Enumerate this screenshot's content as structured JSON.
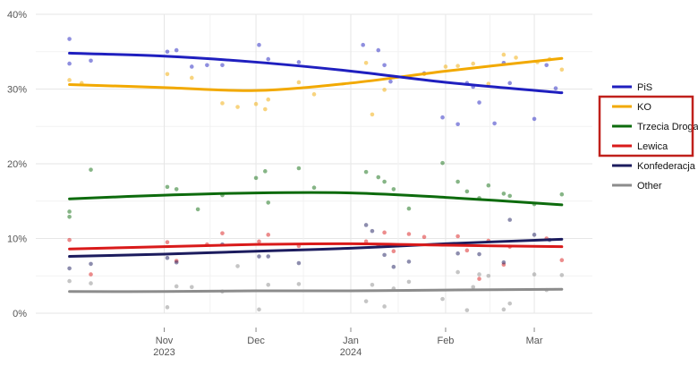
{
  "chart_data": {
    "type": "scatter",
    "ylim": [
      0,
      40
    ],
    "yticks": [
      0,
      10,
      20,
      30,
      40
    ],
    "ytick_labels": [
      "0%",
      "10%",
      "20%",
      "30%",
      "40%"
    ],
    "xlim": [
      "2023-09-20",
      "2024-03-20"
    ],
    "xticks": [
      {
        "date": "2023-11-01",
        "label": "Nov",
        "sublabel": "2023"
      },
      {
        "date": "2023-12-01",
        "label": "Dec",
        "sublabel": ""
      },
      {
        "date": "2024-01-01",
        "label": "Jan",
        "sublabel": "2024"
      },
      {
        "date": "2024-02-01",
        "label": "Feb",
        "sublabel": ""
      },
      {
        "date": "2024-03-01",
        "label": "Mar",
        "sublabel": ""
      }
    ],
    "grid": true,
    "legend_position": "right",
    "legend_highlight": [
      "KO",
      "Trzecia Droga",
      "Lewica"
    ],
    "highlight_color": "#c0201b",
    "series": [
      {
        "name": "PiS",
        "color": "#1f1fbf",
        "trend": [
          [
            "2023-10-01",
            34.8
          ],
          [
            "2023-11-01",
            34.4
          ],
          [
            "2023-12-01",
            33.6
          ],
          [
            "2024-01-01",
            32.4
          ],
          [
            "2024-02-01",
            30.9
          ],
          [
            "2024-03-10",
            29.5
          ]
        ],
        "points": [
          [
            "2023-10-01",
            36.7
          ],
          [
            "2023-10-01",
            33.4
          ],
          [
            "2023-10-08",
            33.8
          ],
          [
            "2023-11-02",
            35.0
          ],
          [
            "2023-11-05",
            35.2
          ],
          [
            "2023-11-10",
            33.0
          ],
          [
            "2023-11-15",
            33.2
          ],
          [
            "2023-11-20",
            33.2
          ],
          [
            "2023-12-02",
            35.9
          ],
          [
            "2023-12-05",
            34.0
          ],
          [
            "2023-12-15",
            33.6
          ],
          [
            "2024-01-05",
            35.9
          ],
          [
            "2024-01-10",
            35.2
          ],
          [
            "2024-01-12",
            33.2
          ],
          [
            "2024-01-14",
            31.0
          ],
          [
            "2024-01-25",
            32.1
          ],
          [
            "2024-01-31",
            26.2
          ],
          [
            "2024-02-05",
            25.3
          ],
          [
            "2024-02-08",
            30.8
          ],
          [
            "2024-02-10",
            30.3
          ],
          [
            "2024-02-12",
            28.2
          ],
          [
            "2024-02-17",
            25.4
          ],
          [
            "2024-02-20",
            33.5
          ],
          [
            "2024-02-22",
            30.8
          ],
          [
            "2024-03-01",
            26.0
          ],
          [
            "2024-03-05",
            33.2
          ],
          [
            "2024-03-08",
            30.1
          ]
        ]
      },
      {
        "name": "KO",
        "color": "#f2a900",
        "trend": [
          [
            "2023-10-01",
            30.6
          ],
          [
            "2023-11-01",
            30.2
          ],
          [
            "2023-12-01",
            29.8
          ],
          [
            "2024-01-01",
            30.8
          ],
          [
            "2024-02-01",
            32.4
          ],
          [
            "2024-03-10",
            34.1
          ]
        ],
        "points": [
          [
            "2023-10-01",
            31.2
          ],
          [
            "2023-10-05",
            30.8
          ],
          [
            "2023-11-02",
            32.0
          ],
          [
            "2023-11-10",
            31.5
          ],
          [
            "2023-11-20",
            28.1
          ],
          [
            "2023-11-25",
            27.6
          ],
          [
            "2023-12-01",
            28.0
          ],
          [
            "2023-12-04",
            27.3
          ],
          [
            "2023-12-05",
            28.6
          ],
          [
            "2023-12-15",
            30.9
          ],
          [
            "2023-12-20",
            29.3
          ],
          [
            "2024-01-06",
            33.5
          ],
          [
            "2024-01-08",
            26.6
          ],
          [
            "2024-01-12",
            29.9
          ],
          [
            "2024-01-25",
            32.0
          ],
          [
            "2024-02-01",
            33.0
          ],
          [
            "2024-02-05",
            33.1
          ],
          [
            "2024-02-10",
            33.4
          ],
          [
            "2024-02-15",
            30.7
          ],
          [
            "2024-02-20",
            34.6
          ],
          [
            "2024-02-24",
            34.2
          ],
          [
            "2024-03-02",
            33.6
          ],
          [
            "2024-03-06",
            34.0
          ],
          [
            "2024-03-10",
            32.6
          ]
        ]
      },
      {
        "name": "Trzecia Droga",
        "color": "#0d6b0d",
        "trend": [
          [
            "2023-10-01",
            15.3
          ],
          [
            "2023-11-01",
            15.8
          ],
          [
            "2023-12-01",
            16.1
          ],
          [
            "2024-01-01",
            16.1
          ],
          [
            "2024-02-01",
            15.5
          ],
          [
            "2024-03-10",
            14.5
          ]
        ],
        "points": [
          [
            "2023-10-01",
            13.6
          ],
          [
            "2023-10-01",
            12.9
          ],
          [
            "2023-10-08",
            19.2
          ],
          [
            "2023-11-02",
            16.9
          ],
          [
            "2023-11-05",
            16.6
          ],
          [
            "2023-11-12",
            13.9
          ],
          [
            "2023-11-20",
            15.8
          ],
          [
            "2023-12-01",
            18.1
          ],
          [
            "2023-12-04",
            19.0
          ],
          [
            "2023-12-05",
            14.8
          ],
          [
            "2023-12-15",
            19.4
          ],
          [
            "2023-12-20",
            16.8
          ],
          [
            "2024-01-06",
            18.9
          ],
          [
            "2024-01-10",
            18.2
          ],
          [
            "2024-01-12",
            17.6
          ],
          [
            "2024-01-15",
            16.6
          ],
          [
            "2024-01-20",
            14.0
          ],
          [
            "2024-01-31",
            20.1
          ],
          [
            "2024-02-05",
            17.6
          ],
          [
            "2024-02-08",
            16.3
          ],
          [
            "2024-02-12",
            15.4
          ],
          [
            "2024-02-15",
            17.1
          ],
          [
            "2024-02-20",
            16.0
          ],
          [
            "2024-02-22",
            15.7
          ],
          [
            "2024-03-01",
            14.6
          ],
          [
            "2024-03-10",
            15.9
          ]
        ]
      },
      {
        "name": "Lewica",
        "color": "#d91a1a",
        "trend": [
          [
            "2023-10-01",
            8.6
          ],
          [
            "2023-11-01",
            8.9
          ],
          [
            "2023-12-01",
            9.2
          ],
          [
            "2024-01-01",
            9.3
          ],
          [
            "2024-02-01",
            9.1
          ],
          [
            "2024-03-10",
            8.9
          ]
        ],
        "points": [
          [
            "2023-10-01",
            9.8
          ],
          [
            "2023-10-08",
            5.2
          ],
          [
            "2023-11-02",
            9.5
          ],
          [
            "2023-11-05",
            7.0
          ],
          [
            "2023-11-15",
            9.2
          ],
          [
            "2023-11-20",
            10.7
          ],
          [
            "2023-12-02",
            9.6
          ],
          [
            "2023-12-05",
            10.5
          ],
          [
            "2023-12-15",
            9.0
          ],
          [
            "2024-01-06",
            9.6
          ],
          [
            "2024-01-10",
            9.1
          ],
          [
            "2024-01-12",
            10.8
          ],
          [
            "2024-01-15",
            8.3
          ],
          [
            "2024-01-20",
            10.6
          ],
          [
            "2024-01-25",
            10.2
          ],
          [
            "2024-02-05",
            10.3
          ],
          [
            "2024-02-08",
            8.4
          ],
          [
            "2024-02-12",
            4.6
          ],
          [
            "2024-02-15",
            9.7
          ],
          [
            "2024-02-20",
            6.5
          ],
          [
            "2024-02-22",
            8.9
          ],
          [
            "2024-03-05",
            10.0
          ],
          [
            "2024-03-10",
            7.1
          ]
        ]
      },
      {
        "name": "Konfederacja",
        "color": "#1c1c5e",
        "trend": [
          [
            "2023-10-01",
            7.6
          ],
          [
            "2023-11-01",
            7.9
          ],
          [
            "2023-12-01",
            8.3
          ],
          [
            "2024-01-01",
            8.7
          ],
          [
            "2024-02-01",
            9.3
          ],
          [
            "2024-03-10",
            9.9
          ]
        ],
        "points": [
          [
            "2023-10-01",
            6.0
          ],
          [
            "2023-10-08",
            6.6
          ],
          [
            "2023-11-02",
            7.4
          ],
          [
            "2023-11-05",
            6.8
          ],
          [
            "2023-11-20",
            9.2
          ],
          [
            "2023-12-02",
            7.6
          ],
          [
            "2023-12-05",
            7.6
          ],
          [
            "2023-12-15",
            6.7
          ],
          [
            "2024-01-06",
            11.8
          ],
          [
            "2024-01-08",
            11.0
          ],
          [
            "2024-01-12",
            7.8
          ],
          [
            "2024-01-15",
            6.2
          ],
          [
            "2024-01-20",
            6.9
          ],
          [
            "2024-02-05",
            8.0
          ],
          [
            "2024-02-12",
            7.9
          ],
          [
            "2024-02-20",
            6.8
          ],
          [
            "2024-02-22",
            12.5
          ],
          [
            "2024-03-01",
            10.5
          ],
          [
            "2024-03-06",
            9.8
          ]
        ]
      },
      {
        "name": "Other",
        "color": "#8c8c8c",
        "trend": [
          [
            "2023-10-01",
            2.9
          ],
          [
            "2023-11-01",
            2.9
          ],
          [
            "2023-12-01",
            3.0
          ],
          [
            "2024-01-01",
            3.0
          ],
          [
            "2024-02-01",
            3.1
          ],
          [
            "2024-03-10",
            3.2
          ]
        ],
        "points": [
          [
            "2023-10-01",
            4.3
          ],
          [
            "2023-10-08",
            4.0
          ],
          [
            "2023-11-02",
            0.8
          ],
          [
            "2023-11-05",
            3.6
          ],
          [
            "2023-11-10",
            3.5
          ],
          [
            "2023-11-20",
            2.9
          ],
          [
            "2023-11-25",
            6.3
          ],
          [
            "2023-12-02",
            0.5
          ],
          [
            "2023-12-05",
            3.8
          ],
          [
            "2023-12-15",
            3.9
          ],
          [
            "2024-01-06",
            1.6
          ],
          [
            "2024-01-08",
            3.8
          ],
          [
            "2024-01-12",
            0.9
          ],
          [
            "2024-01-15",
            3.3
          ],
          [
            "2024-01-20",
            4.2
          ],
          [
            "2024-01-31",
            1.9
          ],
          [
            "2024-02-05",
            5.5
          ],
          [
            "2024-02-08",
            0.4
          ],
          [
            "2024-02-10",
            3.5
          ],
          [
            "2024-02-12",
            5.2
          ],
          [
            "2024-02-15",
            5.0
          ],
          [
            "2024-02-20",
            0.5
          ],
          [
            "2024-02-22",
            1.3
          ],
          [
            "2024-03-01",
            5.2
          ],
          [
            "2024-03-05",
            3.1
          ],
          [
            "2024-03-10",
            5.1
          ]
        ]
      }
    ]
  }
}
